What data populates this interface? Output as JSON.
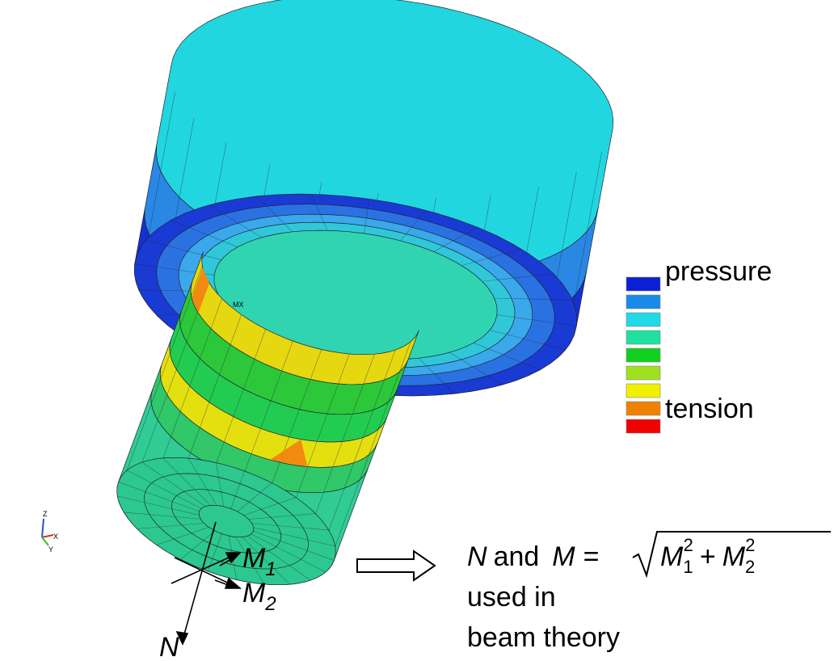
{
  "model": {
    "marker": "MX"
  },
  "triad": {
    "z": "Z",
    "x": "X",
    "y": "Y"
  },
  "legend": {
    "labels": [
      "pressure",
      "tension"
    ]
  },
  "loads": {
    "m1": {
      "symbol": "M",
      "subscript": "1"
    },
    "m2": {
      "symbol": "M",
      "subscript": "2"
    },
    "n": "N"
  },
  "equation": {
    "n": "N",
    "and": "and",
    "lhs": "M",
    "equals": "=",
    "term1": {
      "symbol": "M",
      "subscript": "1",
      "power": "2"
    },
    "plus": "+",
    "term2": {
      "symbol": "M",
      "subscript": "2",
      "power": "2"
    }
  },
  "caption": [
    "used in",
    "beam theory"
  ]
}
